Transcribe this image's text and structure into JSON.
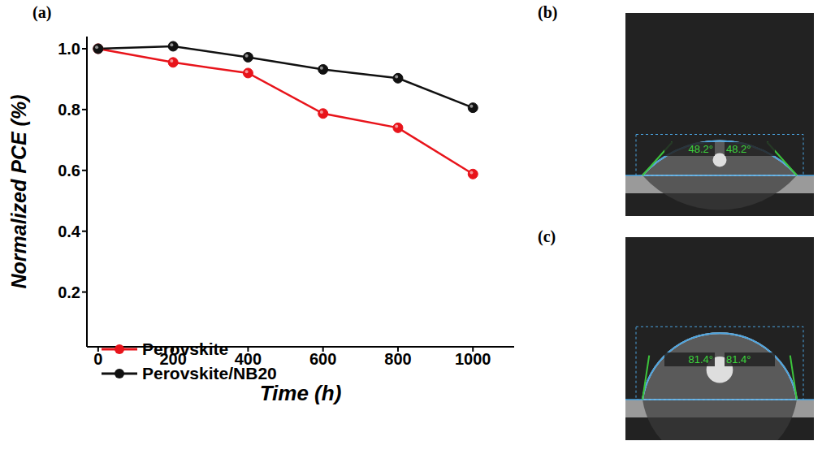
{
  "chart_data": {
    "type": "line",
    "panel": "(a)",
    "xlabel": "Time (h)",
    "ylabel": "Normalized PCE (%)",
    "x": [
      0,
      200,
      400,
      600,
      800,
      1000
    ],
    "series": [
      {
        "name": "Perovskite",
        "color": "#e8141b",
        "marker": "circle",
        "values": [
          1.0,
          0.955,
          0.92,
          0.787,
          0.74,
          0.588
        ]
      },
      {
        "name": "Perovskite/NB20",
        "color": "#111111",
        "marker": "circle",
        "values": [
          1.0,
          1.008,
          0.972,
          0.932,
          0.903,
          0.806
        ]
      }
    ],
    "xlim": [
      -30,
      1110
    ],
    "xticks": [
      0,
      200,
      400,
      600,
      800,
      1000
    ],
    "ylim": [
      0.02,
      1.04
    ],
    "yticks": [
      {
        "value": 1,
        "label": "1.0"
      },
      0.8,
      0.6,
      0.4,
      0.2
    ],
    "legend": "lower left",
    "grid": false
  },
  "images": [
    {
      "panel": "(b)",
      "contact_angle": {
        "value": 48.2,
        "label": "48.2°"
      }
    },
    {
      "panel": "(c)",
      "contact_angle": {
        "value": 81.4,
        "label": "81.4°"
      }
    }
  ]
}
